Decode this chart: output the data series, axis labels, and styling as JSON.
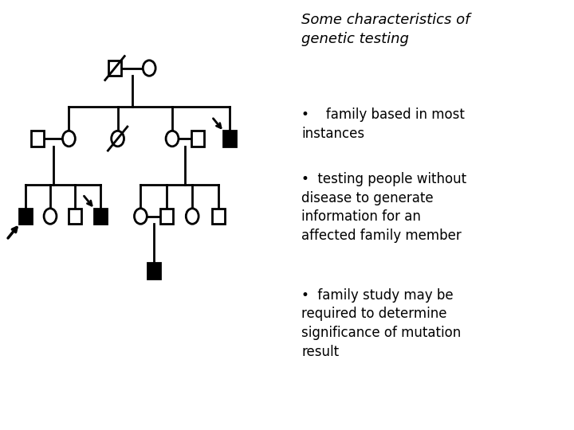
{
  "title": "Some characteristics of\ngenetic testing",
  "bullet1": "•    family based in most\ninstances",
  "bullet2": "•  testing people without\ndisease to generate\ninformation for an\naffected family member",
  "bullet3": "•  family study may be\nrequired to determine\nsignificance of mutation\nresult",
  "title_fontsize": 13,
  "bullet_fontsize": 12,
  "bg_color": "#ffffff",
  "text_color": "#000000",
  "lw": 2.0,
  "sz": 0.22
}
